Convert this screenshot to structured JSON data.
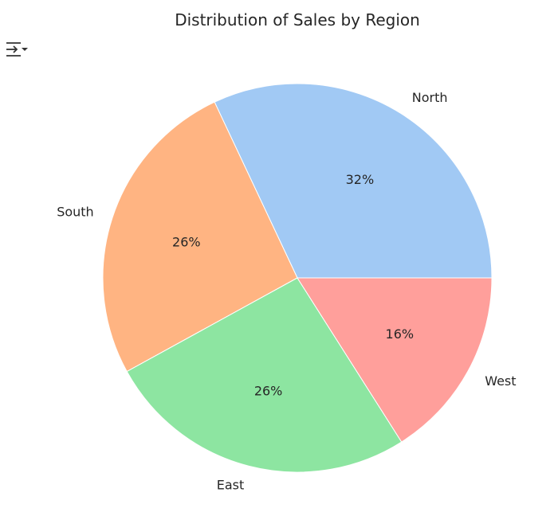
{
  "toolbar": {
    "output_toggle_icon": "expand-collapse-output-icon"
  },
  "chart_data": {
    "type": "pie",
    "title": "Distribution of Sales by Region",
    "categories": [
      "North",
      "South",
      "East",
      "West"
    ],
    "values": [
      32,
      26,
      26,
      16
    ],
    "value_labels": [
      "32%",
      "26%",
      "26%",
      "16%"
    ],
    "colors": [
      "#a1c9f4",
      "#ffb482",
      "#8de5a1",
      "#ff9f9b"
    ],
    "start_angle_deg": 0,
    "direction": "counterclockwise",
    "legend": "none"
  }
}
